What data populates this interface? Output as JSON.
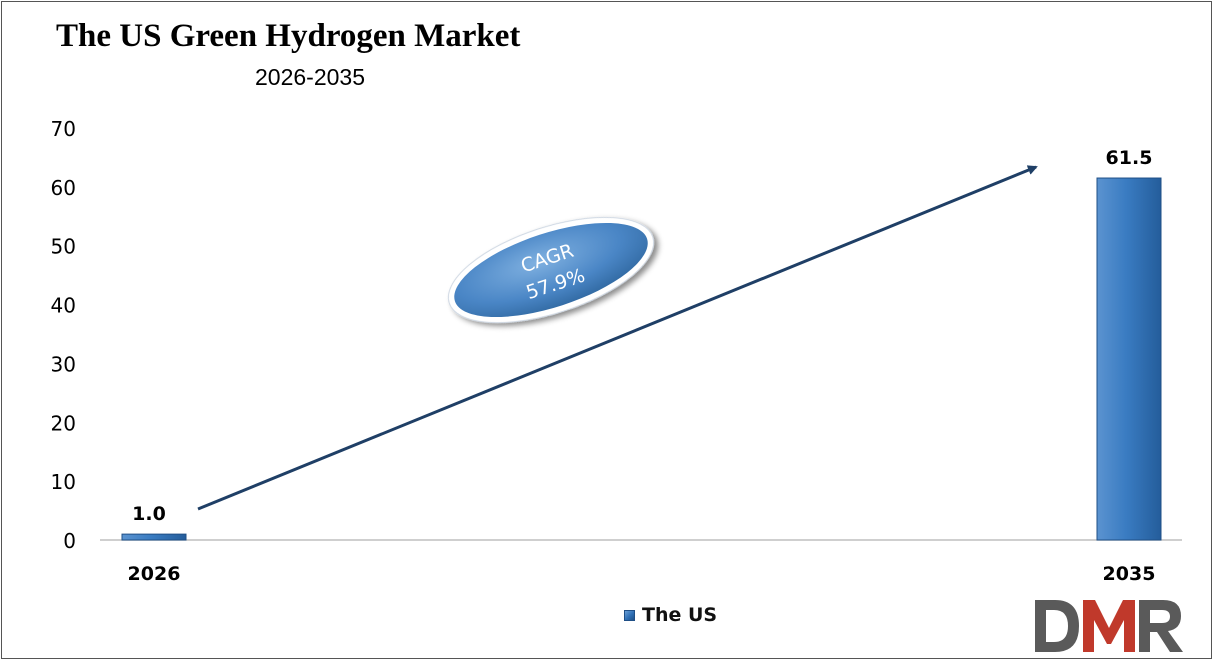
{
  "chart_data": {
    "type": "bar",
    "title": "The US Green Hydrogen Market",
    "subtitle": "2026-2035",
    "categories": [
      "2026",
      "2035"
    ],
    "series": [
      {
        "name": "The US",
        "values": [
          1.0,
          61.5
        ],
        "labels": [
          "1.0",
          "61.5"
        ]
      }
    ],
    "ylim": [
      0,
      70
    ],
    "yticks": [
      0,
      10,
      20,
      30,
      40,
      50,
      60,
      70
    ],
    "grid": false,
    "legend_position": "bottom-center",
    "annotation": {
      "line1": "CAGR",
      "line2": "57.9%"
    },
    "colors": {
      "bar": "#2e6fb5",
      "bar_edge": "#1f4f86",
      "arrow": "#1f3f66",
      "ellipse": "#4a86c6"
    }
  },
  "logo": {
    "text": "DMR",
    "colors": [
      "#5a5a5a",
      "#c0392b"
    ]
  }
}
